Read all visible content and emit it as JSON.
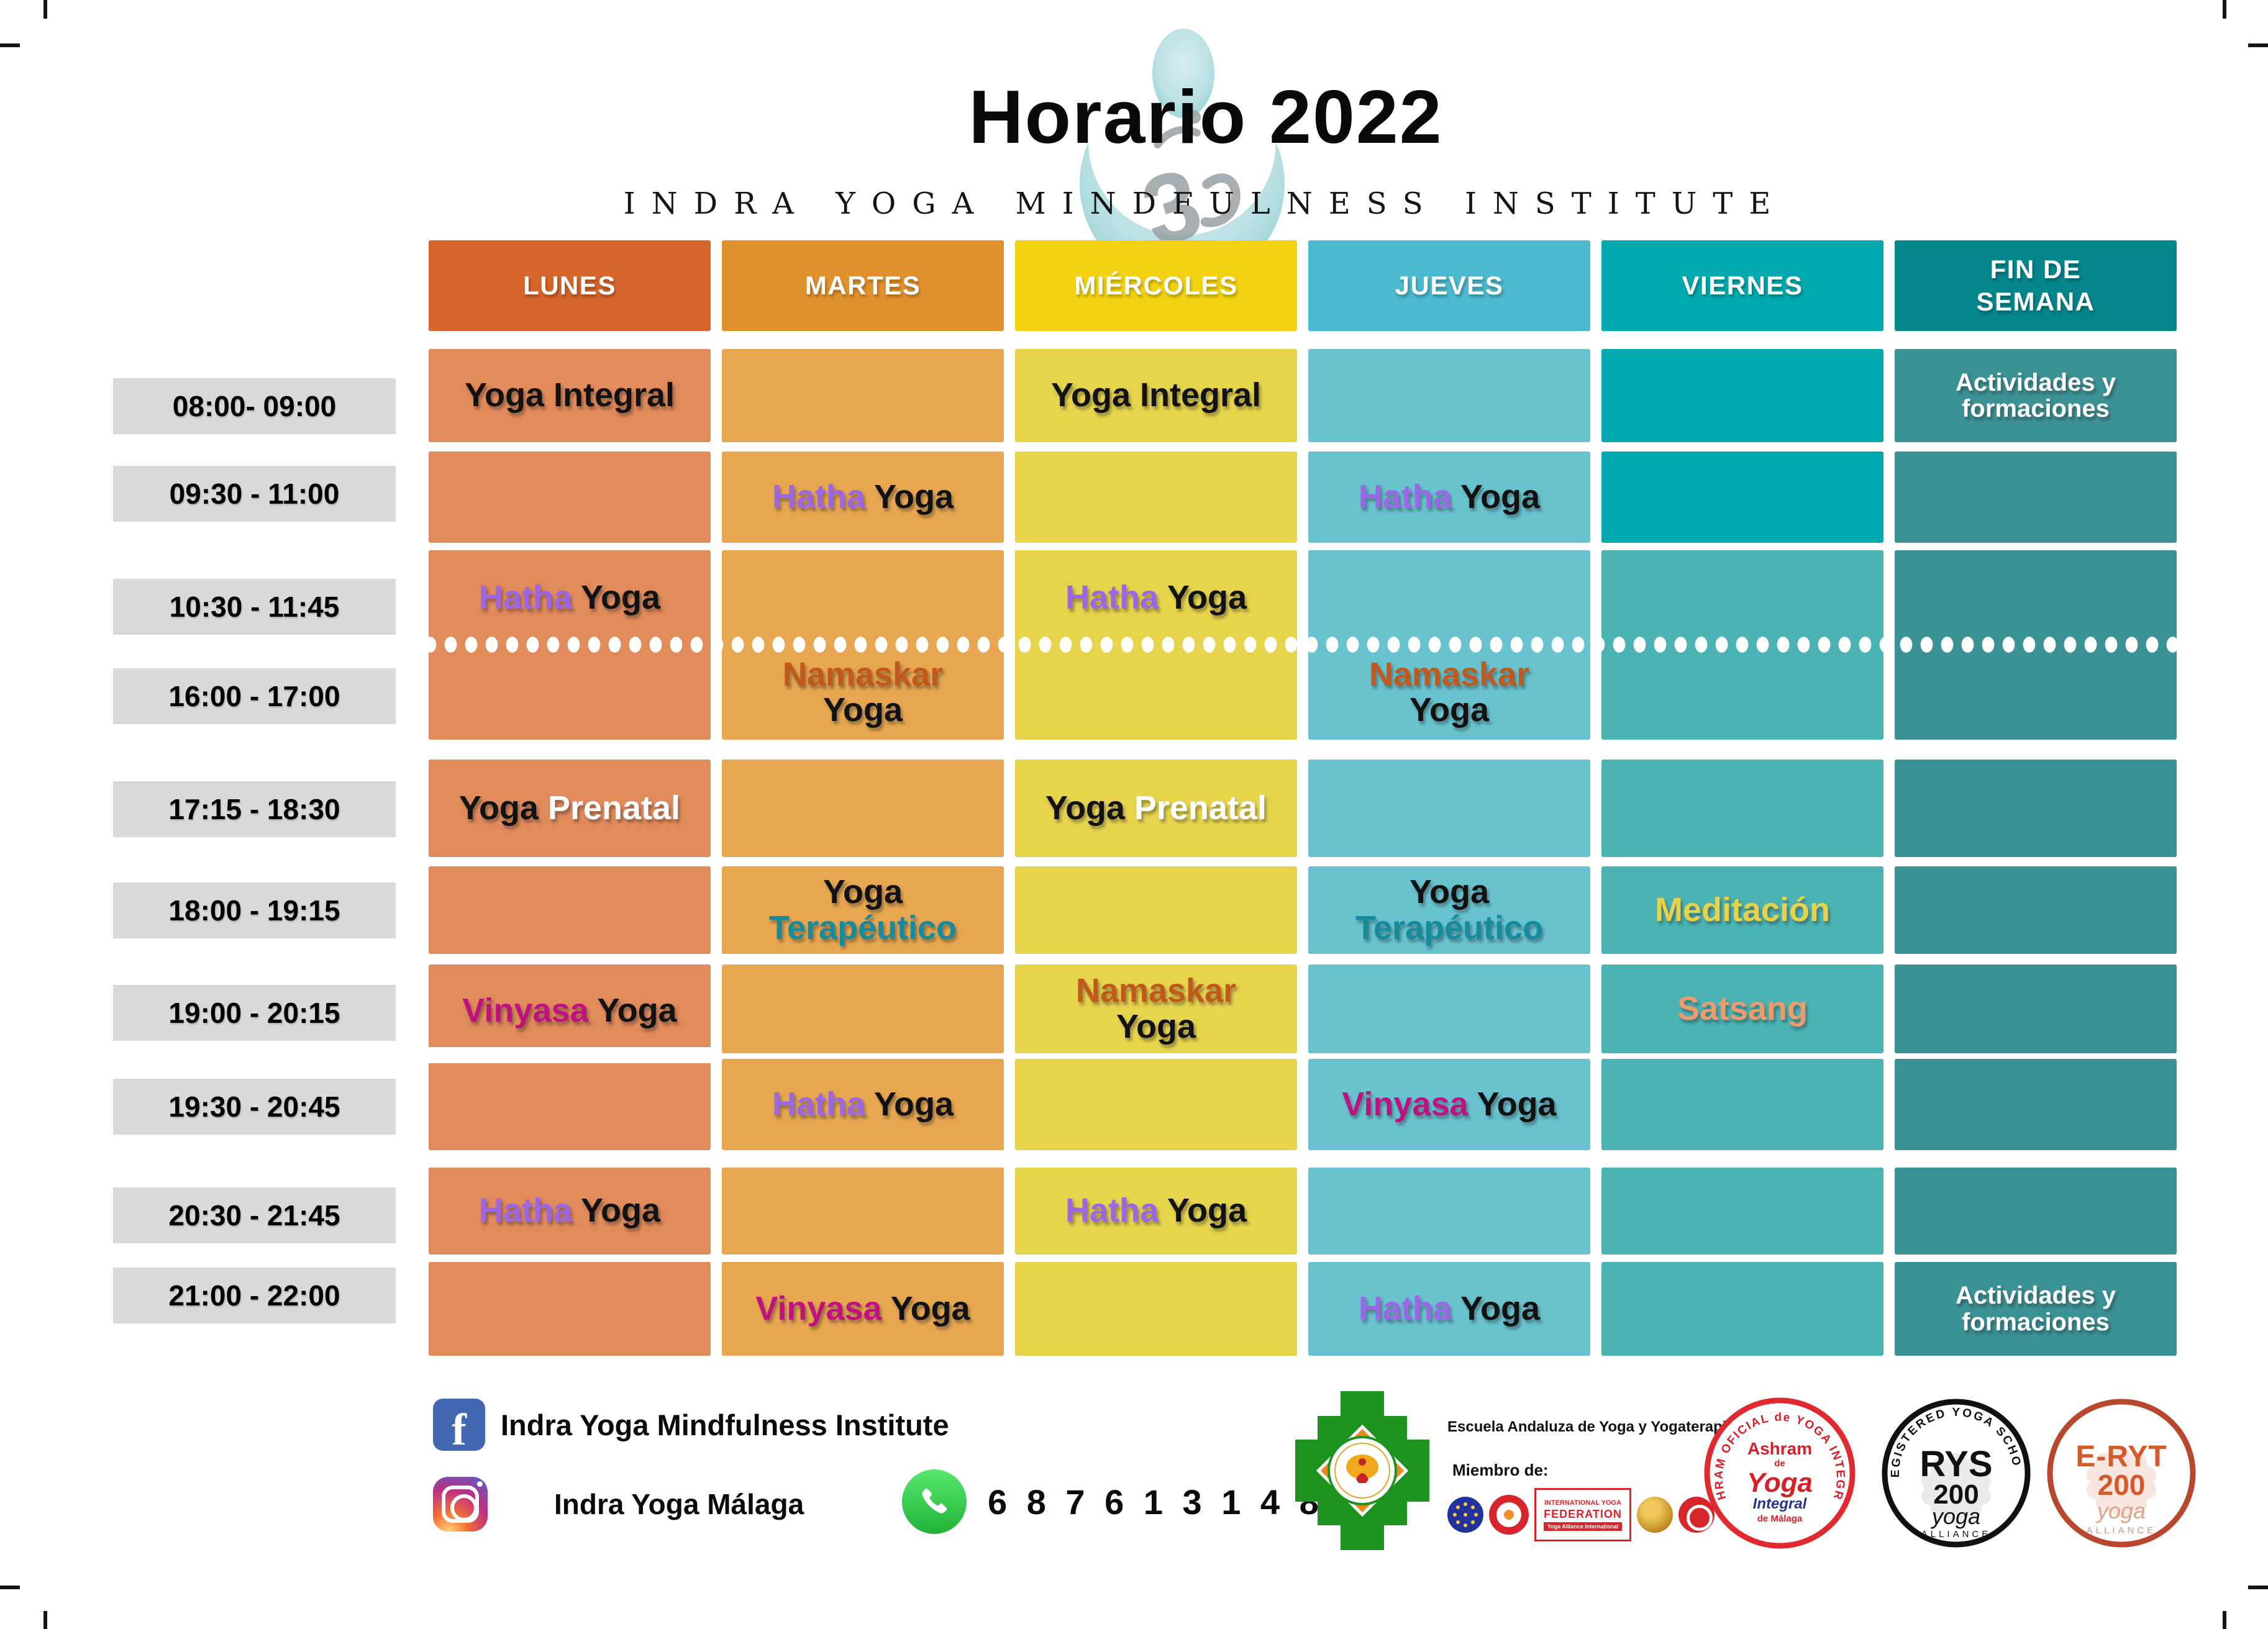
{
  "title": "Horario 2022",
  "subtitle": "INDRA YOGA MINDFULNESS INSTITUTE",
  "colors": {
    "chip_bg": "#D9D9D9",
    "word": {
      "black": "#121212",
      "white": "#FFFFFF",
      "purple": "#9B67E6",
      "magenta": "#C01181",
      "orange": "#C2591C",
      "teal": "#158B9D",
      "yellow": "#E8D24A",
      "salmon": "#EC9C6C"
    }
  },
  "schedule": {
    "columns": [
      {
        "day": "LUNES",
        "header_color": "#D5652B",
        "cell_color": "#E18A5A"
      },
      {
        "day": "MARTES",
        "header_color": "#E0912D",
        "cell_color": "#E7A750"
      },
      {
        "day": "MIÉRCOLES",
        "header_color": "#F2D211",
        "cell_color": "#E7D44D"
      },
      {
        "day": "JUEVES",
        "header_color": "#4BB9CE",
        "cell_color": "#68C3CF"
      },
      {
        "day": "VIERNES",
        "header_color": "#00A9AD",
        "cell_color": "#00A9AD",
        "cell_color_alt": "#4CB3B5"
      },
      {
        "day": "FIN DE\nSEMANA",
        "header_color": "#05868B",
        "cell_color": "#3B9295"
      }
    ],
    "time_slots": [
      "08:00- 09:00",
      "09:30 - 11:00",
      "10:30 - 11:45",
      "16:00 - 17:00",
      "17:15 - 18:30",
      "18:00 - 19:15",
      "19:00 - 20:15",
      "19:30 - 20:45",
      "20:30 - 21:45",
      "21:00 - 22:00"
    ],
    "rows": [
      {
        "geom": "r1",
        "va": false,
        "cells": [
          {
            "lines": [
              [
                {
                  "t": "Yoga Integral",
                  "c": "black"
                }
              ]
            ]
          },
          null,
          {
            "lines": [
              [
                {
                  "t": "Yoga Integral",
                  "c": "black"
                }
              ]
            ]
          },
          null,
          null,
          {
            "fs": 40,
            "lines": [
              [
                {
                  "t": "Actividades y",
                  "c": "white"
                }
              ],
              [
                {
                  "t": "formaciones",
                  "c": "white"
                }
              ]
            ]
          }
        ]
      },
      {
        "geom": "r2",
        "va": false,
        "cells": [
          null,
          {
            "lines": [
              [
                {
                  "t": "Hatha ",
                  "c": "purple"
                },
                {
                  "t": "Yoga",
                  "c": "black"
                }
              ]
            ]
          },
          null,
          {
            "lines": [
              [
                {
                  "t": "Hatha ",
                  "c": "purple"
                },
                {
                  "t": "Yoga",
                  "c": "black"
                }
              ]
            ]
          },
          null,
          null
        ]
      },
      {
        "geom": "r5",
        "va": true,
        "cells": [
          {
            "lines": [
              [
                {
                  "t": "Yoga ",
                  "c": "black"
                },
                {
                  "t": "Prenatal",
                  "c": "white"
                }
              ]
            ]
          },
          null,
          {
            "lines": [
              [
                {
                  "t": "Yoga ",
                  "c": "black"
                },
                {
                  "t": "Prenatal",
                  "c": "white"
                }
              ]
            ]
          },
          null,
          null,
          null
        ]
      },
      {
        "geom": "r6",
        "va": true,
        "cells": [
          null,
          {
            "lines": [
              [
                {
                  "t": "Yoga",
                  "c": "black"
                }
              ],
              [
                {
                  "t": "Terapéutico",
                  "c": "teal"
                }
              ]
            ]
          },
          null,
          {
            "lines": [
              [
                {
                  "t": "Yoga",
                  "c": "black"
                }
              ],
              [
                {
                  "t": "Terapéutico",
                  "c": "teal"
                }
              ]
            ]
          },
          {
            "lines": [
              [
                {
                  "t": "Meditación",
                  "c": "yellow"
                }
              ]
            ]
          },
          null
        ]
      },
      {
        "geom": "r7",
        "va": true,
        "skip": [
          0
        ],
        "cells": [
          null,
          null,
          {
            "lines": [
              [
                {
                  "t": "Namaskar",
                  "c": "orange"
                }
              ],
              [
                {
                  "t": "Yoga",
                  "c": "black"
                }
              ]
            ]
          },
          null,
          {
            "lines": [
              [
                {
                  "t": "Satsang",
                  "c": "salmon"
                }
              ]
            ]
          },
          null
        ]
      },
      {
        "geom": "r8",
        "va": true,
        "skip": [
          0
        ],
        "cells": [
          null,
          {
            "lines": [
              [
                {
                  "t": "Hatha ",
                  "c": "purple"
                },
                {
                  "t": "Yoga",
                  "c": "black"
                }
              ]
            ]
          },
          null,
          {
            "lines": [
              [
                {
                  "t": "Vinyasa ",
                  "c": "magenta"
                },
                {
                  "t": "Yoga",
                  "c": "black"
                }
              ]
            ]
          },
          null,
          null
        ]
      },
      {
        "geom": "r9",
        "va": true,
        "cells": [
          {
            "lines": [
              [
                {
                  "t": "Hatha ",
                  "c": "purple"
                },
                {
                  "t": "Yoga",
                  "c": "black"
                }
              ]
            ]
          },
          null,
          {
            "lines": [
              [
                {
                  "t": "Hatha ",
                  "c": "purple"
                },
                {
                  "t": "Yoga",
                  "c": "black"
                }
              ]
            ]
          },
          null,
          null,
          null
        ]
      },
      {
        "geom": "r10",
        "va": true,
        "cells": [
          null,
          {
            "lines": [
              [
                {
                  "t": "Vinyasa ",
                  "c": "magenta"
                },
                {
                  "t": "Yoga",
                  "c": "black"
                }
              ]
            ]
          },
          null,
          {
            "lines": [
              [
                {
                  "t": "Hatha ",
                  "c": "purple"
                },
                {
                  "t": "Yoga",
                  "c": "black"
                }
              ]
            ]
          },
          null,
          {
            "fs": 40,
            "lines": [
              [
                {
                  "t": "Actividades y",
                  "c": "white"
                }
              ],
              [
                {
                  "t": "formaciones",
                  "c": "white"
                }
              ]
            ]
          }
        ]
      }
    ],
    "merged_morning": {
      "cells": [
        {
          "pos": "top",
          "lines": [
            [
              {
                "t": "Hatha ",
                "c": "purple"
              },
              {
                "t": "Yoga",
                "c": "black"
              }
            ]
          ]
        },
        {
          "pos": "bottom",
          "lines": [
            [
              {
                "t": "Namaskar",
                "c": "orange"
              }
            ],
            [
              {
                "t": "Yoga",
                "c": "black"
              }
            ]
          ]
        },
        {
          "pos": "top",
          "lines": [
            [
              {
                "t": "Hatha ",
                "c": "purple"
              },
              {
                "t": "Yoga",
                "c": "black"
              }
            ]
          ]
        },
        {
          "pos": "bottom",
          "lines": [
            [
              {
                "t": "Namaskar",
                "c": "orange"
              }
            ],
            [
              {
                "t": "Yoga",
                "c": "black"
              }
            ]
          ]
        },
        null,
        null
      ]
    },
    "merged_evening_lunes": {
      "pos": "top",
      "lines": [
        [
          {
            "t": "Vinyasa ",
            "c": "magenta"
          },
          {
            "t": "Yoga",
            "c": "black"
          }
        ]
      ]
    }
  },
  "footer": {
    "facebook_label": "Indra Yoga Mindfulness Institute",
    "facebook_glyph": "f",
    "instagram_label": "Indra Yoga Málaga",
    "whatsapp_number": "6 8 7 6 1 3 1 4 8",
    "school": {
      "name_line": "Escuela Andaluza de Yoga y Yogaterapia",
      "member_line": "Miembro de:",
      "federation_line1": "INTERNATIONAL YOGA",
      "federation_line2": "FEDERATION",
      "federation_line3": "Yoga Alliance International"
    },
    "badges": {
      "ashram": {
        "arc": "ASHRAM OFICIAL de YOGA INTEGRAL",
        "l1": "Ashram",
        "l2": "de",
        "l3": "Yoga",
        "l4": "Integral",
        "l5": "de Málaga"
      },
      "rys": {
        "arc": "REGISTERED YOGA SCHOOL",
        "l1": "RYS",
        "l2": "200",
        "l3": "yoga",
        "l4": "ALLIANCE"
      },
      "eryt": {
        "l1": "E-RYT",
        "l2": "200",
        "l3": "yoga",
        "l4": "ALLIANCE"
      }
    }
  }
}
